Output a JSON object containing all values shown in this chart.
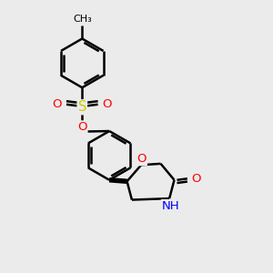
{
  "background_color": "#ebebeb",
  "bond_color": "#000000",
  "bond_width": 1.8,
  "atom_colors": {
    "O": "#ff0000",
    "S": "#cccc00",
    "N": "#0000ff",
    "C": "#000000"
  },
  "font_size": 8.5,
  "figsize": [
    3.0,
    3.0
  ],
  "dpi": 100
}
